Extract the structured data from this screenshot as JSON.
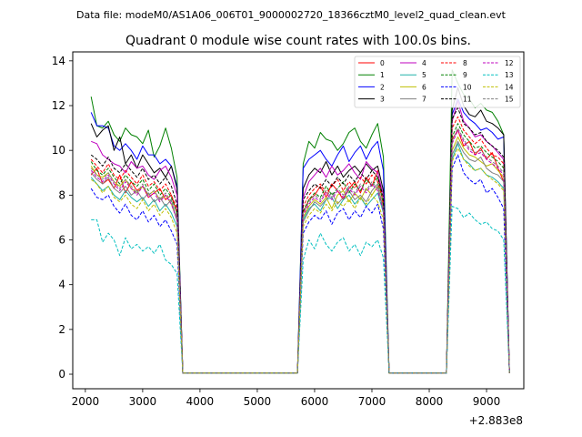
{
  "suptitle": "Data file: modeM0/AS1A06_006T01_9000002720_18366cztM0_level2_quad_clean.evt",
  "chart_data": {
    "type": "line",
    "title": "Quadrant 0 module wise count rates with 100.0s bins.",
    "xlabel": "",
    "ylabel": "",
    "x_offset_label": "+2.883e8",
    "xlim": [
      1780,
      9650
    ],
    "ylim": [
      -0.65,
      14.4
    ],
    "x_ticks": [
      2000,
      3000,
      4000,
      5000,
      6000,
      7000,
      8000,
      9000
    ],
    "y_ticks": [
      0,
      2,
      4,
      6,
      8,
      10,
      12,
      14
    ],
    "legend_position": "upper right",
    "x": [
      2100,
      2200,
      2300,
      2400,
      2500,
      2600,
      2700,
      2800,
      2900,
      3000,
      3100,
      3200,
      3300,
      3400,
      3500,
      3600,
      3700,
      5700,
      5800,
      5900,
      6000,
      6100,
      6200,
      6300,
      6400,
      6500,
      6600,
      6700,
      6800,
      6900,
      7000,
      7100,
      7200,
      7300,
      8200,
      8300,
      8400,
      8500,
      8600,
      8700,
      8800,
      8900,
      9000,
      9100,
      9200,
      9300,
      9400
    ],
    "series": [
      {
        "name": "0",
        "color": "#ff0000",
        "dash": "solid",
        "values": [
          8.9,
          9.2,
          8.5,
          8.7,
          8.3,
          8.9,
          8.1,
          8.6,
          8.2,
          8.4,
          7.9,
          8.1,
          8.3,
          7.8,
          8.0,
          7.2,
          0.05,
          0.05,
          7.2,
          7.8,
          8.0,
          8.4,
          7.9,
          8.5,
          8.2,
          7.8,
          8.3,
          8.6,
          8.1,
          8.8,
          8.4,
          9.1,
          7.5,
          0.05,
          0.05,
          0.05,
          10.5,
          10.9,
          10.2,
          10.4,
          9.8,
          10.1,
          9.6,
          9.9,
          9.2,
          8.6,
          0.05
        ]
      },
      {
        "name": "1",
        "color": "#008000",
        "dash": "solid",
        "values": [
          12.4,
          11.1,
          11.0,
          11.3,
          10.7,
          10.4,
          11.0,
          10.7,
          10.6,
          10.3,
          10.9,
          9.7,
          10.2,
          11.0,
          10.1,
          8.8,
          0.05,
          0.05,
          9.4,
          10.4,
          10.1,
          10.8,
          10.5,
          10.4,
          10.0,
          10.3,
          10.8,
          11.0,
          10.4,
          10.1,
          10.7,
          11.2,
          9.7,
          0.05,
          0.05,
          0.05,
          13.6,
          13.0,
          12.5,
          12.3,
          11.9,
          12.1,
          11.8,
          11.7,
          11.3,
          10.7,
          0.05
        ]
      },
      {
        "name": "2",
        "color": "#0000ff",
        "dash": "solid",
        "values": [
          11.7,
          11.1,
          11.1,
          11.0,
          10.2,
          10.0,
          10.3,
          10.0,
          9.6,
          10.2,
          9.8,
          9.8,
          9.4,
          9.6,
          9.3,
          8.4,
          0.05,
          0.05,
          9.2,
          9.6,
          9.8,
          10.0,
          9.6,
          9.3,
          9.8,
          10.2,
          9.5,
          9.9,
          10.2,
          9.6,
          10.1,
          10.4,
          9.1,
          0.05,
          0.05,
          0.05,
          11.6,
          12.3,
          11.7,
          11.4,
          11.2,
          10.9,
          11.0,
          10.8,
          10.5,
          10.6,
          0.05
        ]
      },
      {
        "name": "3",
        "color": "#000000",
        "dash": "solid",
        "values": [
          11.2,
          10.6,
          10.9,
          11.1,
          10.0,
          10.6,
          9.4,
          9.8,
          9.2,
          9.8,
          9.4,
          9.0,
          9.2,
          8.8,
          9.3,
          8.3,
          0.05,
          0.05,
          8.3,
          8.9,
          9.2,
          9.0,
          9.5,
          8.9,
          9.3,
          8.8,
          9.1,
          9.3,
          9.0,
          9.4,
          9.1,
          9.3,
          8.2,
          0.05,
          0.05,
          0.05,
          11.8,
          12.8,
          12.0,
          11.6,
          11.5,
          11.8,
          11.3,
          11.2,
          11.0,
          10.7,
          0.05
        ]
      },
      {
        "name": "4",
        "color": "#bf00bf",
        "dash": "solid",
        "values": [
          10.4,
          10.3,
          9.8,
          9.6,
          9.4,
          9.3,
          9.0,
          9.5,
          9.2,
          9.3,
          8.9,
          8.7,
          9.1,
          9.3,
          8.8,
          8.0,
          0.05,
          0.05,
          7.9,
          8.6,
          8.9,
          9.2,
          8.8,
          9.3,
          8.9,
          9.1,
          9.4,
          9.0,
          8.7,
          9.5,
          9.2,
          9.0,
          8.0,
          0.05,
          0.05,
          0.05,
          11.3,
          12.2,
          11.3,
          11.0,
          10.6,
          10.7,
          10.4,
          10.2,
          9.9,
          9.6,
          0.05
        ]
      },
      {
        "name": "5",
        "color": "#20b2aa",
        "dash": "solid",
        "values": [
          8.8,
          8.5,
          8.2,
          8.4,
          8.0,
          7.8,
          8.2,
          7.9,
          7.7,
          7.9,
          7.5,
          7.8,
          7.3,
          7.6,
          7.2,
          6.6,
          0.05,
          0.05,
          6.9,
          7.4,
          7.6,
          7.3,
          7.8,
          7.9,
          7.4,
          7.8,
          8.0,
          7.6,
          7.9,
          7.5,
          7.8,
          8.1,
          7.2,
          0.05,
          0.05,
          0.05,
          9.6,
          10.3,
          9.6,
          9.4,
          9.1,
          9.2,
          8.9,
          8.8,
          8.6,
          8.3,
          0.05
        ]
      },
      {
        "name": "6",
        "color": "#bfbf00",
        "dash": "solid",
        "values": [
          9.3,
          8.9,
          8.8,
          9.0,
          8.6,
          8.4,
          8.7,
          8.3,
          8.1,
          8.4,
          8.0,
          8.2,
          7.8,
          8.0,
          7.6,
          6.9,
          0.05,
          0.05,
          7.0,
          7.5,
          7.8,
          7.6,
          7.9,
          7.4,
          8.0,
          8.2,
          7.7,
          8.1,
          7.8,
          8.3,
          8.0,
          8.4,
          7.4,
          0.05,
          0.05,
          0.05,
          10.0,
          10.6,
          10.1,
          9.8,
          9.7,
          9.5,
          9.3,
          9.4,
          9.1,
          8.8,
          0.05
        ]
      },
      {
        "name": "7",
        "color": "#808080",
        "dash": "solid",
        "values": [
          9.0,
          8.7,
          8.5,
          8.8,
          8.3,
          8.1,
          8.4,
          8.0,
          8.2,
          7.8,
          8.1,
          7.7,
          7.9,
          7.5,
          7.8,
          6.8,
          0.05,
          0.05,
          6.8,
          7.3,
          7.7,
          7.5,
          7.8,
          8.1,
          7.6,
          7.9,
          8.2,
          7.8,
          8.0,
          7.7,
          8.2,
          8.5,
          7.3,
          0.05,
          0.05,
          0.05,
          9.8,
          10.4,
          9.9,
          9.6,
          9.5,
          9.7,
          9.2,
          9.0,
          8.9,
          8.6,
          0.05
        ]
      },
      {
        "name": "8",
        "color": "#ff0000",
        "dash": "dashed",
        "values": [
          9.6,
          9.3,
          9.0,
          9.4,
          8.9,
          8.7,
          9.1,
          8.8,
          8.5,
          8.9,
          8.4,
          8.6,
          8.2,
          8.5,
          8.0,
          7.4,
          0.05,
          0.05,
          7.5,
          8.0,
          8.3,
          8.5,
          8.1,
          8.4,
          8.7,
          8.2,
          8.6,
          8.3,
          8.8,
          8.5,
          8.9,
          8.6,
          7.7,
          0.05,
          0.05,
          0.05,
          11.0,
          11.5,
          10.9,
          10.6,
          10.3,
          10.5,
          10.1,
          9.8,
          9.7,
          9.4,
          0.05
        ]
      },
      {
        "name": "9",
        "color": "#008000",
        "dash": "dashed",
        "values": [
          9.5,
          9.1,
          8.9,
          9.2,
          8.8,
          8.5,
          8.9,
          8.6,
          8.4,
          8.7,
          8.2,
          8.5,
          8.0,
          8.3,
          7.9,
          7.2,
          0.05,
          0.05,
          7.3,
          7.8,
          8.1,
          7.9,
          8.4,
          8.0,
          8.3,
          8.6,
          8.1,
          8.5,
          8.2,
          8.7,
          8.4,
          8.8,
          7.6,
          0.05,
          0.05,
          0.05,
          10.6,
          11.2,
          10.7,
          10.4,
          10.1,
          10.2,
          9.9,
          9.7,
          9.5,
          9.2,
          0.05
        ]
      },
      {
        "name": "10",
        "color": "#0000ff",
        "dash": "dashed",
        "values": [
          8.3,
          7.9,
          7.8,
          8.0,
          7.5,
          7.2,
          7.6,
          7.1,
          6.9,
          7.3,
          6.8,
          7.1,
          6.6,
          6.9,
          6.4,
          5.8,
          0.05,
          0.05,
          6.3,
          6.8,
          7.1,
          6.9,
          7.3,
          6.7,
          7.2,
          7.4,
          6.9,
          7.3,
          7.0,
          7.5,
          7.2,
          7.6,
          6.5,
          0.05,
          0.05,
          0.05,
          9.2,
          9.8,
          9.0,
          8.7,
          8.5,
          8.7,
          8.1,
          8.3,
          7.9,
          7.4,
          0.05
        ]
      },
      {
        "name": "11",
        "color": "#000000",
        "dash": "dashed",
        "values": [
          9.8,
          9.6,
          9.3,
          9.7,
          9.2,
          9.0,
          9.4,
          9.1,
          8.8,
          9.2,
          8.7,
          8.9,
          8.5,
          8.8,
          8.4,
          7.6,
          0.05,
          0.05,
          7.8,
          8.2,
          8.5,
          8.3,
          8.7,
          8.4,
          8.8,
          8.5,
          8.9,
          8.6,
          9.0,
          8.7,
          9.1,
          8.8,
          7.9,
          0.05,
          0.05,
          0.05,
          11.4,
          11.9,
          11.2,
          11.0,
          10.7,
          10.8,
          10.4,
          10.2,
          10.0,
          9.7,
          0.05
        ]
      },
      {
        "name": "12",
        "color": "#bf00bf",
        "dash": "dashed",
        "values": [
          9.1,
          8.8,
          8.6,
          8.9,
          8.5,
          8.2,
          8.6,
          8.3,
          8.0,
          8.4,
          7.9,
          8.1,
          7.7,
          8.0,
          7.6,
          6.9,
          0.05,
          0.05,
          7.1,
          7.6,
          7.9,
          7.7,
          8.1,
          7.8,
          8.2,
          7.9,
          8.3,
          8.0,
          8.4,
          8.1,
          8.5,
          8.2,
          7.3,
          0.05,
          0.05,
          0.05,
          10.3,
          10.9,
          10.4,
          10.0,
          9.8,
          9.9,
          9.6,
          9.4,
          9.2,
          8.9,
          0.05
        ]
      },
      {
        "name": "13",
        "color": "#00bfbf",
        "dash": "dashed",
        "values": [
          6.9,
          6.9,
          5.9,
          6.3,
          6.0,
          5.3,
          6.1,
          5.6,
          5.8,
          5.5,
          5.7,
          5.4,
          5.8,
          5.1,
          4.9,
          4.5,
          0.05,
          0.05,
          5.1,
          6.0,
          5.6,
          6.3,
          5.8,
          5.5,
          5.9,
          6.1,
          5.5,
          5.8,
          5.3,
          5.9,
          5.7,
          6.0,
          5.2,
          0.05,
          0.05,
          0.05,
          7.5,
          7.4,
          7.0,
          7.2,
          6.9,
          6.7,
          6.8,
          6.5,
          6.4,
          6.0,
          0.05
        ]
      },
      {
        "name": "14",
        "color": "#bfbf00",
        "dash": "dashed",
        "values": [
          8.7,
          8.5,
          8.1,
          8.4,
          7.9,
          7.7,
          8.0,
          7.6,
          7.4,
          7.8,
          7.3,
          7.6,
          7.1,
          7.4,
          7.0,
          6.3,
          0.05,
          0.05,
          6.6,
          7.1,
          7.4,
          7.2,
          7.6,
          7.3,
          7.7,
          7.5,
          7.8,
          7.4,
          7.9,
          7.6,
          8.0,
          7.7,
          6.9,
          0.05,
          0.05,
          0.05,
          9.5,
          10.1,
          9.6,
          9.3,
          9.1,
          9.2,
          8.9,
          8.7,
          8.5,
          8.2,
          0.05
        ]
      },
      {
        "name": "15",
        "color": "#808080",
        "dash": "dashed",
        "values": [
          9.2,
          8.9,
          8.7,
          9.0,
          8.6,
          8.3,
          8.7,
          8.4,
          8.1,
          8.5,
          8.0,
          8.2,
          7.8,
          8.1,
          7.7,
          7.0,
          0.05,
          0.05,
          7.2,
          7.7,
          8.0,
          7.8,
          8.2,
          7.9,
          8.3,
          8.0,
          8.4,
          8.1,
          8.5,
          8.2,
          8.6,
          8.3,
          7.4,
          0.05,
          0.05,
          0.05,
          10.4,
          11.0,
          10.5,
          10.1,
          9.9,
          10.0,
          9.7,
          9.5,
          9.3,
          9.0,
          0.05
        ]
      }
    ]
  }
}
